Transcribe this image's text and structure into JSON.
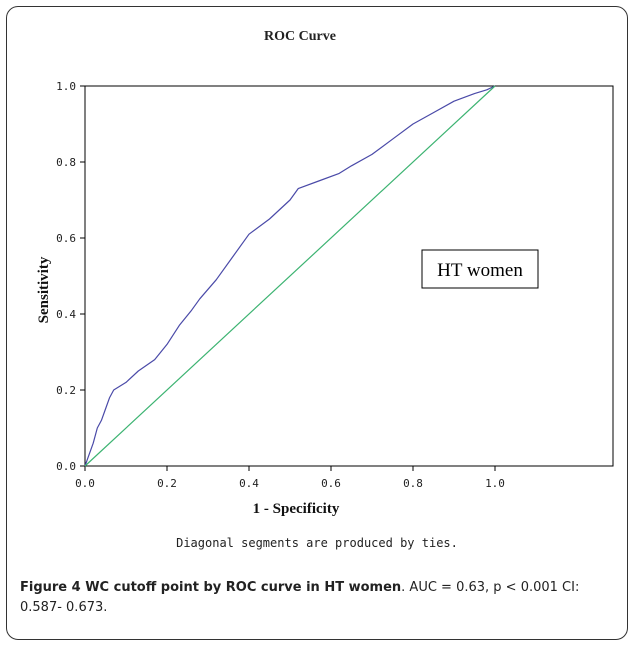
{
  "chart_data": {
    "type": "line",
    "title": "ROC Curve",
    "xlabel": "1 - Specificity",
    "ylabel": "Sensitivity",
    "xlim": [
      0,
      1.0
    ],
    "ylim": [
      0,
      1.0
    ],
    "xticks": [
      "0.0",
      "0.2",
      "0.4",
      "0.6",
      "0.8",
      "1.0"
    ],
    "yticks": [
      "0.0",
      "0.2",
      "0.4",
      "0.6",
      "0.8",
      "1.0"
    ],
    "grid": false,
    "legend": "none",
    "annotation": "HT women",
    "footnote": "Diagonal segments are produced by ties.",
    "series": [
      {
        "color": "#4a4aa8",
        "x": [
          0,
          0.01,
          0.02,
          0.03,
          0.04,
          0.05,
          0.06,
          0.07,
          0.1,
          0.13,
          0.17,
          0.2,
          0.23,
          0.26,
          0.28,
          0.32,
          0.36,
          0.4,
          0.45,
          0.5,
          0.52,
          0.57,
          0.62,
          0.65,
          0.7,
          0.75,
          0.8,
          0.85,
          0.9,
          0.95,
          0.98,
          1.0
        ],
        "y": [
          0,
          0.03,
          0.06,
          0.1,
          0.12,
          0.15,
          0.18,
          0.2,
          0.22,
          0.25,
          0.28,
          0.32,
          0.37,
          0.41,
          0.44,
          0.49,
          0.55,
          0.61,
          0.65,
          0.7,
          0.73,
          0.75,
          0.77,
          0.79,
          0.82,
          0.86,
          0.9,
          0.93,
          0.96,
          0.98,
          0.99,
          1.0
        ]
      },
      {
        "color": "#3cb371",
        "x": [
          0,
          1.0
        ],
        "y": [
          0,
          1.0
        ]
      }
    ]
  },
  "caption": {
    "label": "Figure 4 WC cutoff point by ROC curve in HT women",
    "text": ". AUC = 0.63, p < 0.001 CI: 0.587- 0.673."
  }
}
